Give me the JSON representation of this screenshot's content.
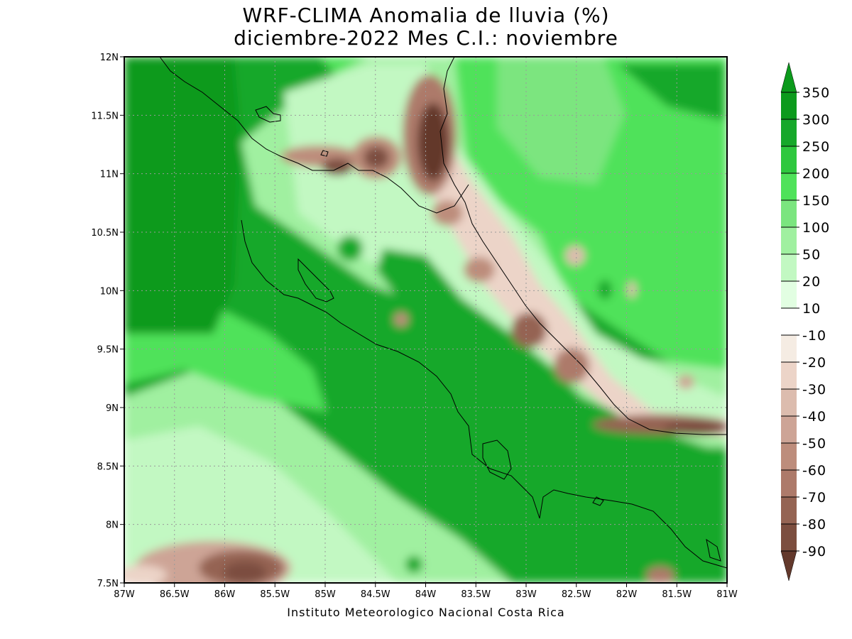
{
  "title": {
    "line1": "WRF-CLIMA Anomalia de lluvia (%)",
    "line2": "diciembre-2022 Mes C.I.: noviembre"
  },
  "credit": "Instituto Meteorologico Nacional Costa Rica",
  "map": {
    "lon_ticks": [
      "87W",
      "86.5W",
      "86W",
      "85.5W",
      "85W",
      "84.5W",
      "84W",
      "83.5W",
      "83W",
      "82.5W",
      "82W",
      "81.5W",
      "81W"
    ],
    "lat_ticks": [
      "12N",
      "11.5N",
      "11N",
      "10.5N",
      "10N",
      "9.5N",
      "9N",
      "8.5N",
      "8N",
      "7.5N"
    ],
    "lon_range": [
      -87,
      -81
    ],
    "lat_range": [
      7.5,
      12
    ],
    "grid": true
  },
  "legend": {
    "labels": [
      "350",
      "300",
      "250",
      "200",
      "150",
      "100",
      "50",
      "20",
      "10",
      "-10",
      "-20",
      "-30",
      "-40",
      "-50",
      "-60",
      "-70",
      "-80",
      "-90"
    ],
    "colors": {
      "g350": "#0c9a1c",
      "g300": "#16a82a",
      "g250": "#2ec83e",
      "g200": "#4fe25a",
      "g150": "#7be57f",
      "g100": "#a0f0a0",
      "g50": "#c2f8c2",
      "g20": "#e2fee2",
      "white": "#ffffff",
      "b10": "#f5ece3",
      "b20": "#ecd4c8",
      "b30": "#dcbcae",
      "b40": "#cda496",
      "b50": "#bd8d7c",
      "b60": "#ad7a6a",
      "b70": "#956453",
      "b80": "#7c4e3f",
      "b90": "#63392c"
    }
  }
}
